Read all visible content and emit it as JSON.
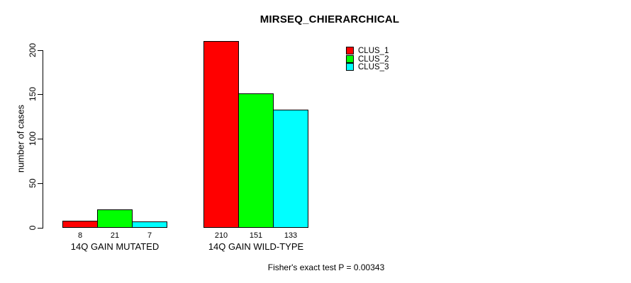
{
  "chart_data": {
    "type": "bar",
    "title": "MIRSEQ_CHIERARCHICAL",
    "ylabel": "number of cases",
    "xlabel": "",
    "categories": [
      "14Q GAIN MUTATED",
      "14Q GAIN WILD-TYPE"
    ],
    "series": [
      {
        "name": "CLUS_1",
        "color": "#ff0000",
        "values": [
          8,
          210
        ]
      },
      {
        "name": "CLUS_2",
        "color": "#00ff00",
        "values": [
          21,
          151
        ]
      },
      {
        "name": "CLUS_3",
        "color": "#00ffff",
        "values": [
          7,
          133
        ]
      }
    ],
    "bar_value_labels": [
      [
        "8",
        "21",
        "7"
      ],
      [
        "210",
        "151",
        "133"
      ]
    ],
    "yticks": [
      "0",
      "50",
      "100",
      "150",
      "200"
    ],
    "ylim": [
      0,
      210
    ],
    "grid": false,
    "legend_position": "top-right-inside",
    "legend_entries": [
      "CLUS_1",
      "CLUS_2",
      "CLUS_3"
    ],
    "annotation": "Fisher's exact test P = 0.00343",
    "bar_border_color": "#000000",
    "background_color": "#ffffff"
  }
}
